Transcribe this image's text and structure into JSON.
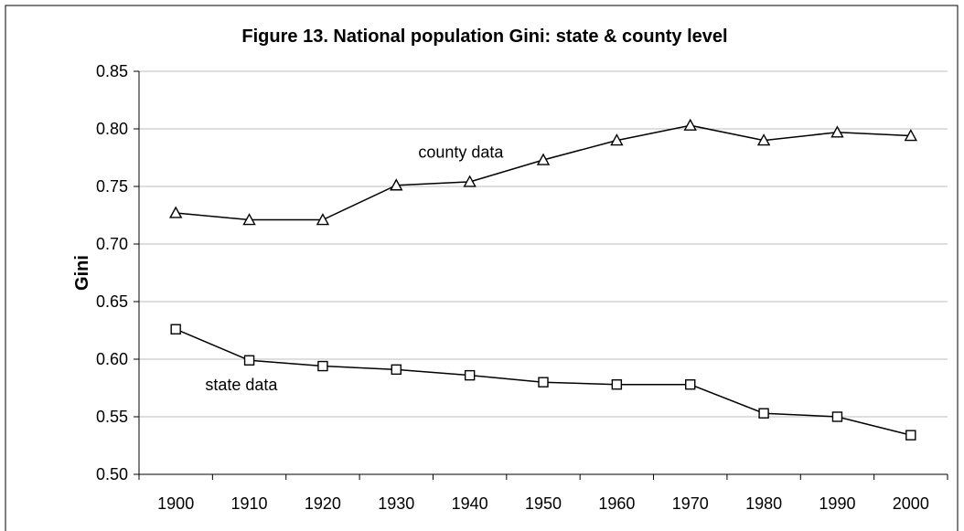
{
  "chart_data": {
    "type": "line",
    "title": "Figure 13. National population Gini: state & county level",
    "xlabel": "",
    "ylabel": "Gini",
    "x": [
      1900,
      1910,
      1920,
      1930,
      1940,
      1950,
      1960,
      1970,
      1980,
      1990,
      2000
    ],
    "x_tick_labels": [
      "1900",
      "1910",
      "1920",
      "1930",
      "1940",
      "1950",
      "1960",
      "1970",
      "1980",
      "1990",
      "2000"
    ],
    "ylim": [
      0.5,
      0.85
    ],
    "y_tick_labels": [
      "0.50",
      "0.55",
      "0.60",
      "0.65",
      "0.70",
      "0.75",
      "0.80",
      "0.85"
    ],
    "grid": true,
    "legend": "none",
    "series": [
      {
        "key": "county",
        "marker": "triangle",
        "label_text": "county data",
        "label_at": [
          1933,
          0.775
        ],
        "values": [
          0.727,
          0.721,
          0.721,
          0.751,
          0.754,
          0.773,
          0.79,
          0.803,
          0.79,
          0.797,
          0.794
        ]
      },
      {
        "key": "state",
        "marker": "square",
        "label_text": "state data",
        "label_at": [
          1904,
          0.573
        ],
        "values": [
          0.626,
          0.599,
          0.594,
          0.591,
          0.586,
          0.58,
          0.578,
          0.578,
          0.553,
          0.55,
          0.534
        ]
      }
    ],
    "colors": {
      "line": "#000000",
      "grid": "#bdbdbd"
    }
  }
}
